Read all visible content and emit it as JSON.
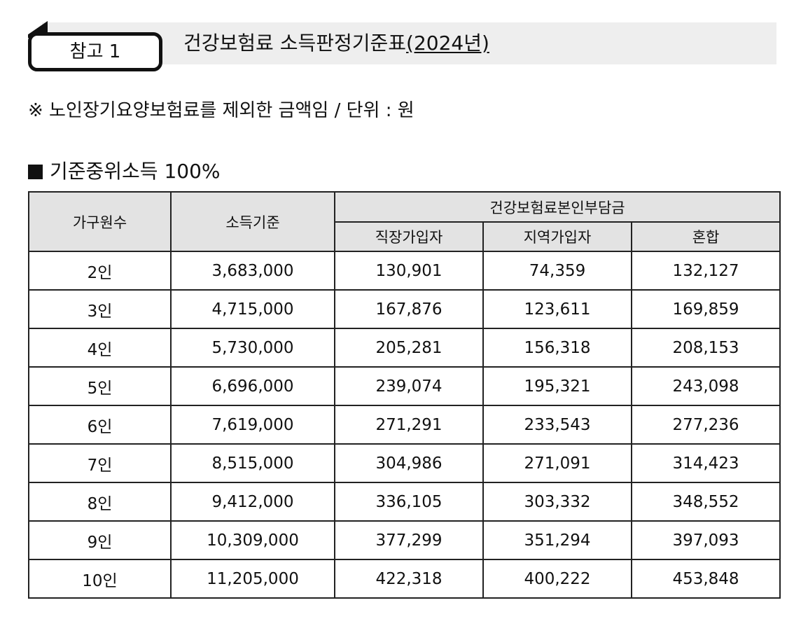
{
  "header": {
    "badge_label": "참고 1",
    "title_main": "건강보험료 소득판정기준표",
    "title_year": "(2024년)"
  },
  "note": "※ 노인장기요양보험료를 제외한 금액임 / 단위 : 원",
  "section": {
    "heading": "기준중위소득 100%"
  },
  "table": {
    "columns": {
      "household": "가구원수",
      "income": "소득기준",
      "premium_group": "건강보험료본인부담금",
      "employee": "직장가입자",
      "regional": "지역가입자",
      "mixed": "혼합"
    },
    "rows": [
      {
        "household": "2인",
        "income": "3,683,000",
        "employee": "130,901",
        "regional": "74,359",
        "mixed": "132,127"
      },
      {
        "household": "3인",
        "income": "4,715,000",
        "employee": "167,876",
        "regional": "123,611",
        "mixed": "169,859"
      },
      {
        "household": "4인",
        "income": "5,730,000",
        "employee": "205,281",
        "regional": "156,318",
        "mixed": "208,153"
      },
      {
        "household": "5인",
        "income": "6,696,000",
        "employee": "239,074",
        "regional": "195,321",
        "mixed": "243,098"
      },
      {
        "household": "6인",
        "income": "7,619,000",
        "employee": "271,291",
        "regional": "233,543",
        "mixed": "277,236"
      },
      {
        "household": "7인",
        "income": "8,515,000",
        "employee": "304,986",
        "regional": "271,091",
        "mixed": "314,423"
      },
      {
        "household": "8인",
        "income": "9,412,000",
        "employee": "336,105",
        "regional": "303,332",
        "mixed": "348,552"
      },
      {
        "household": "9인",
        "income": "10,309,000",
        "employee": "377,299",
        "regional": "351,294",
        "mixed": "397,093"
      },
      {
        "household": "10인",
        "income": "11,205,000",
        "employee": "422,318",
        "regional": "400,222",
        "mixed": "453,848"
      }
    ]
  }
}
